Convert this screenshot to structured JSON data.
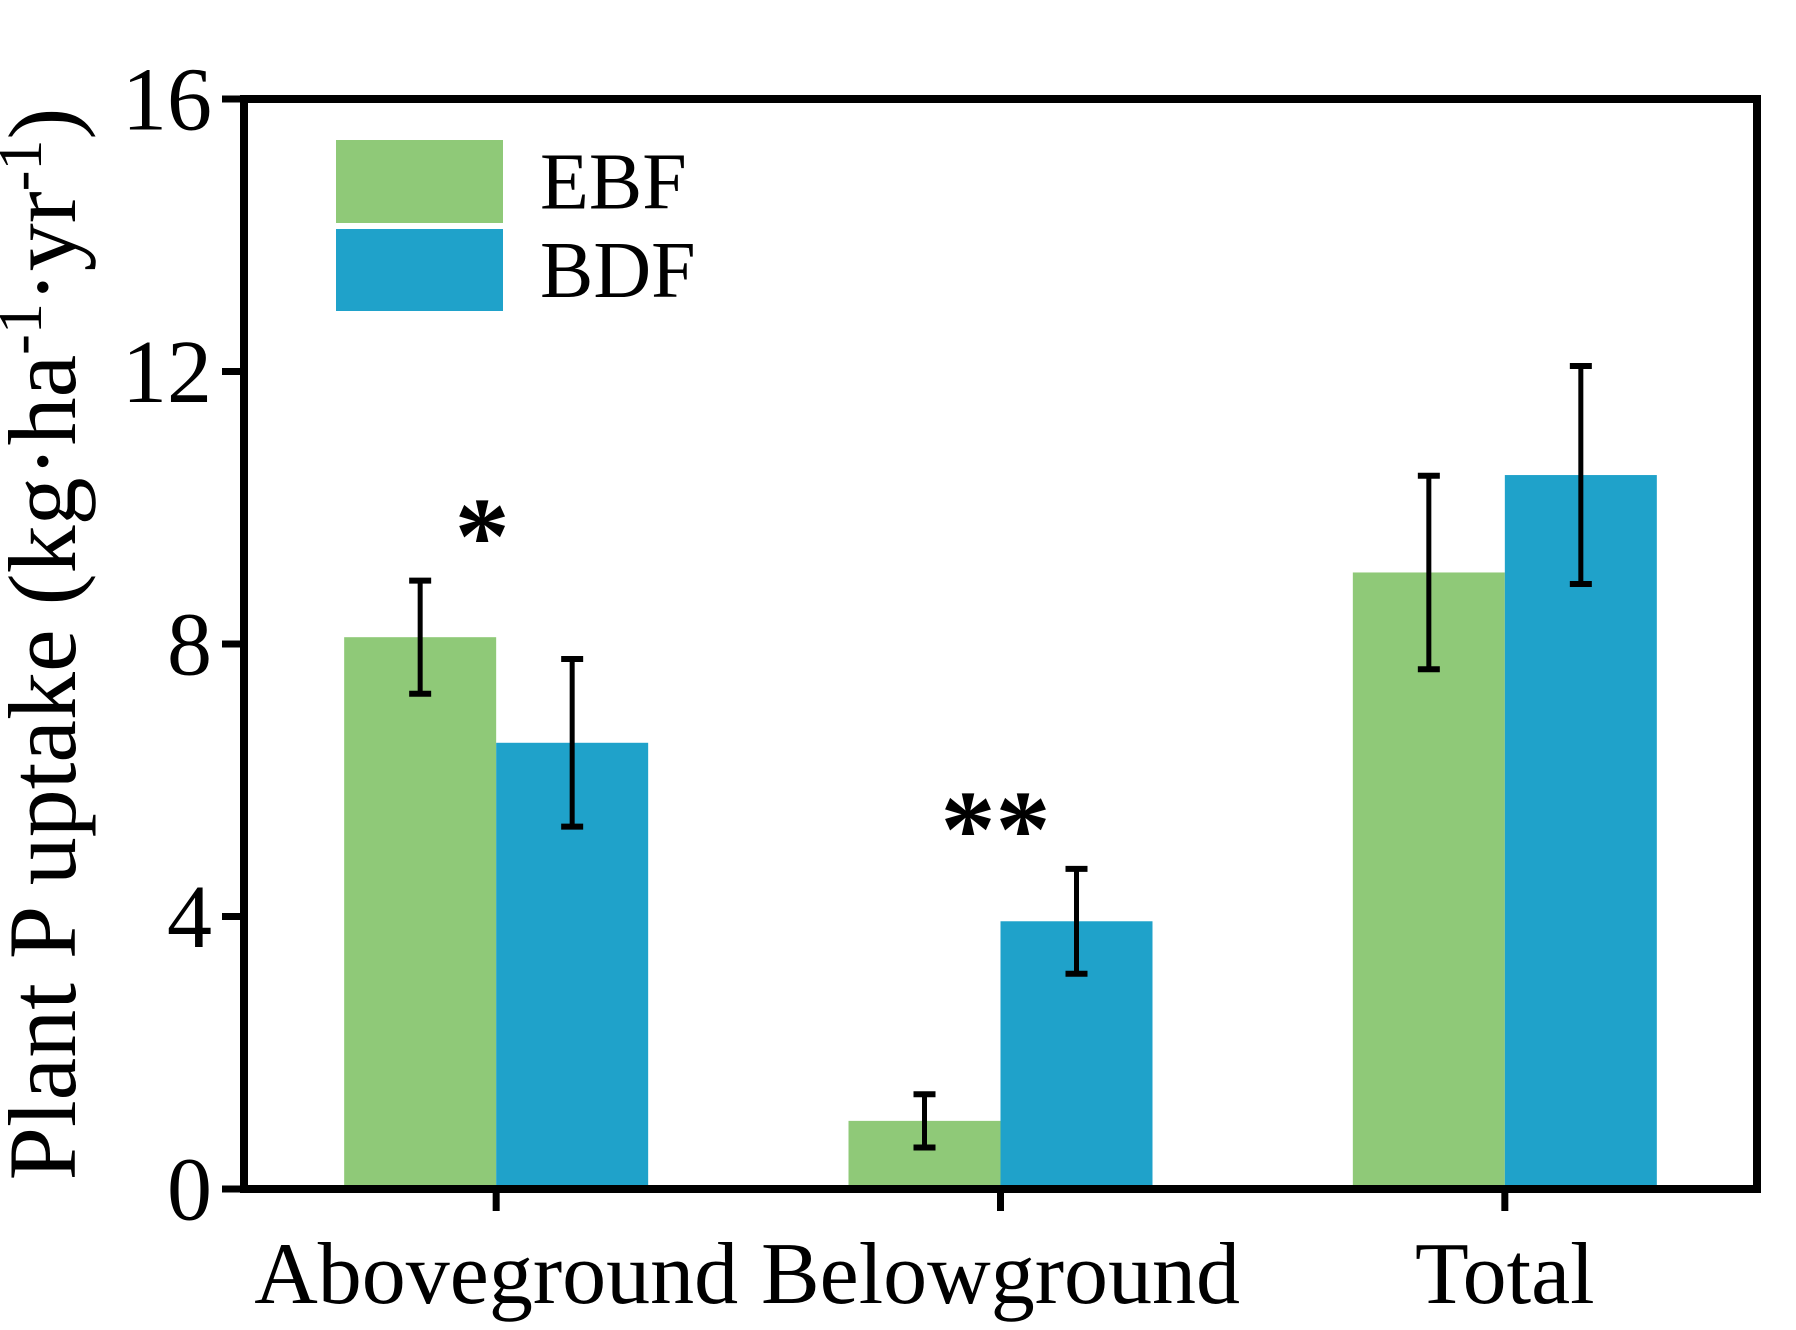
{
  "chart_data": {
    "type": "bar",
    "title": "",
    "xlabel": "",
    "ylabel": "Plant P uptake (kg·ha⁻¹·yr⁻¹)",
    "ylabel_parts": [
      {
        "text": "Plant P uptake (kg·ha",
        "sup": false
      },
      {
        "text": "-1",
        "sup": true
      },
      {
        "text": "·yr",
        "sup": false
      },
      {
        "text": "-1",
        "sup": true
      },
      {
        "text": ")",
        "sup": false
      }
    ],
    "categories": [
      "Aboveground",
      "Belowground",
      "Total"
    ],
    "series": [
      {
        "name": "EBF",
        "color": "#8FC978",
        "values": [
          8.1,
          1.0,
          9.05
        ],
        "errors": [
          0.83,
          0.39,
          1.42
        ]
      },
      {
        "name": "BDF",
        "color": "#1FA2CA",
        "values": [
          6.55,
          3.93,
          10.48
        ],
        "errors": [
          1.23,
          0.77,
          1.6
        ]
      }
    ],
    "significance_marks": [
      {
        "category": "Aboveground",
        "label": "*",
        "y_value": 9.8
      },
      {
        "category": "Belowground",
        "label": "**",
        "y_value": 5.5
      }
    ],
    "ylim": [
      0,
      16
    ],
    "yticks": [
      0,
      4,
      8,
      12,
      16
    ],
    "grid": false,
    "legend": {
      "position": "top-left",
      "items": [
        "EBF",
        "BDF"
      ]
    }
  },
  "colors": {
    "axis": "#000000",
    "background": "#FFFFFF",
    "ebf_green": "#8FC978",
    "bdf_blue": "#1FA2CA"
  }
}
